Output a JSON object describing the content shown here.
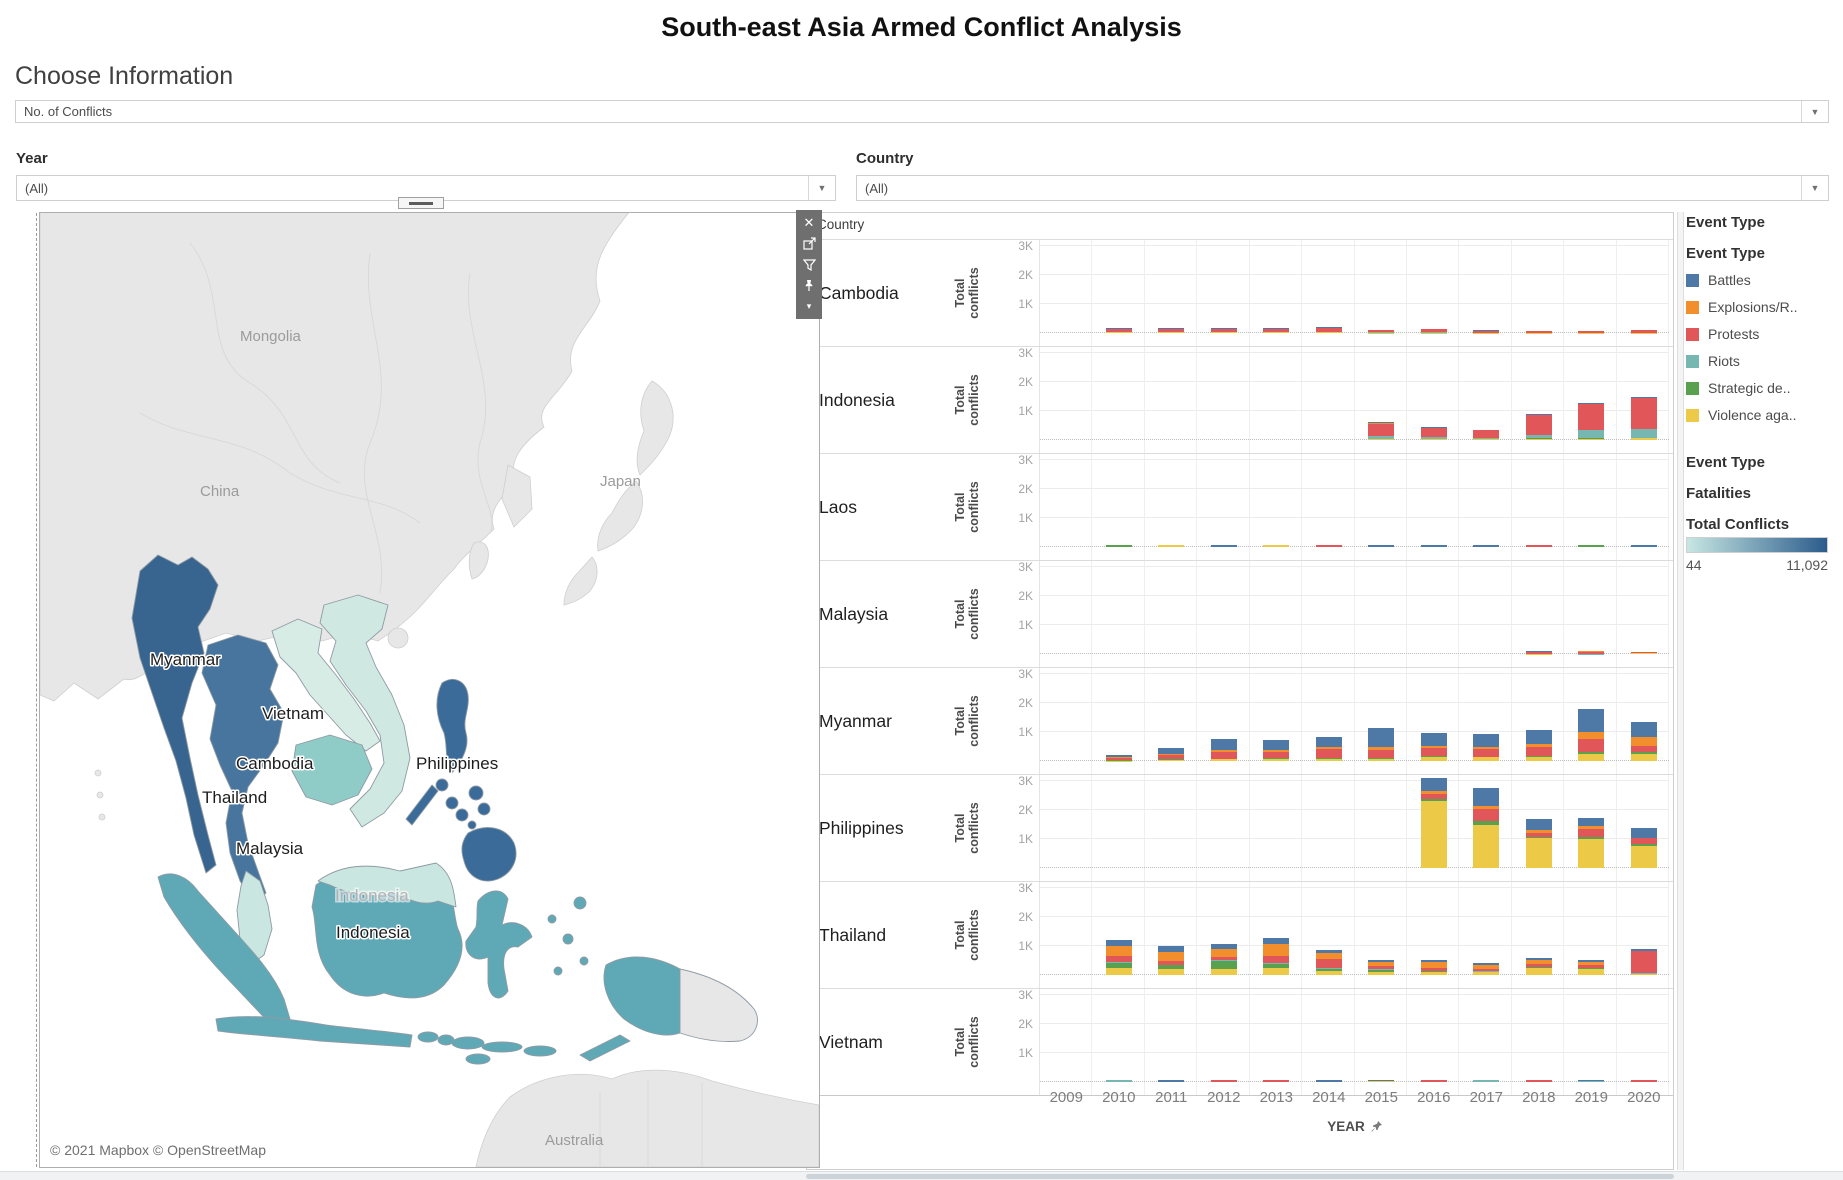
{
  "title": "South-east Asia Armed Conflict Analysis",
  "controls": {
    "choose_information_label": "Choose Information",
    "choose_information_value": "No. of Conflicts",
    "year_label": "Year",
    "year_value": "(All)",
    "country_label": "Country",
    "country_value": "(All)"
  },
  "map": {
    "attribution": "© 2021 Mapbox © OpenStreetMap",
    "basemap_labels": {
      "mongolia": "Mongolia",
      "china": "China",
      "japan": "Japan",
      "australia": "Australia",
      "indonesia_basemap": "Indonesia"
    },
    "mark_labels": {
      "myanmar": "Myanmar",
      "vietnam": "Vietnam",
      "cambodia": "Cambodia",
      "thailand": "Thailand",
      "malaysia": "Malaysia",
      "philippines": "Philippines",
      "indonesia": "Indonesia"
    },
    "country_colors": {
      "land": "#e7e7e7",
      "myanmar": "#386590",
      "thailand": "#47759e",
      "laos": "#d7ece5",
      "vietnam": "#cfe9e2",
      "cambodia": "#8fcbc7",
      "malaysia": "#c9e7e0",
      "indonesia": "#5fa9b7",
      "philippines": "#3a6b99"
    }
  },
  "legend": {
    "section1_title": "Event Type",
    "section2_title": "Event Type",
    "section3_title": "Event Type",
    "fatalities_title": "Fatalities",
    "total_conflicts_title": "Total Conflicts",
    "gradient_min": "44",
    "gradient_max": "11,092",
    "gradient_colors": [
      "#c7e7e3",
      "#2b5c8c"
    ],
    "event_types": [
      {
        "key": "battles",
        "label": "Battles",
        "color": "#4e79a7"
      },
      {
        "key": "explosions",
        "label": "Explosions/R..",
        "color": "#f28e2b"
      },
      {
        "key": "protests",
        "label": "Protests",
        "color": "#e15759"
      },
      {
        "key": "riots",
        "label": "Riots",
        "color": "#76b7b2"
      },
      {
        "key": "strategic",
        "label": "Strategic de..",
        "color": "#59a14f"
      },
      {
        "key": "violence",
        "label": "Violence aga..",
        "color": "#edc948"
      }
    ]
  },
  "chart_data": {
    "type": "bar",
    "stacked": true,
    "row_header": "Country",
    "y_axis_label": "Total conflicts",
    "y_ticks": [
      "3K",
      "2K",
      "1K"
    ],
    "ylim": [
      0,
      3000
    ],
    "x_label": "YEAR",
    "years": [
      "2009",
      "2010",
      "2011",
      "2012",
      "2013",
      "2014",
      "2015",
      "2016",
      "2017",
      "2018",
      "2019",
      "2020"
    ],
    "stack_order": [
      "violence",
      "strategic",
      "riots",
      "protests",
      "explosions",
      "battles"
    ],
    "countries": [
      {
        "name": "Cambodia",
        "values": {
          "2010": {
            "violence": 25,
            "strategic": 8,
            "riots": 6,
            "protests": 110,
            "explosions": 6,
            "battles": 30
          },
          "2011": {
            "violence": 22,
            "strategic": 6,
            "riots": 6,
            "protests": 105,
            "explosions": 5,
            "battles": 28
          },
          "2012": {
            "violence": 20,
            "strategic": 5,
            "riots": 6,
            "protests": 100,
            "explosions": 4,
            "battles": 25
          },
          "2013": {
            "violence": 22,
            "strategic": 5,
            "riots": 8,
            "protests": 110,
            "explosions": 4,
            "battles": 25
          },
          "2014": {
            "violence": 25,
            "strategic": 6,
            "riots": 10,
            "protests": 125,
            "explosions": 4,
            "battles": 25
          },
          "2015": {
            "violence": 10,
            "strategic": 4,
            "riots": 5,
            "protests": 80,
            "explosions": 2,
            "battles": 10
          },
          "2016": {
            "violence": 12,
            "strategic": 5,
            "riots": 6,
            "protests": 105,
            "explosions": 3,
            "battles": 15
          },
          "2017": {
            "violence": 8,
            "strategic": 3,
            "riots": 4,
            "protests": 65,
            "explosions": 2,
            "battles": 8
          },
          "2018": {
            "violence": 5,
            "strategic": 2,
            "riots": 3,
            "protests": 45,
            "explosions": 1,
            "battles": 5
          },
          "2019": {
            "violence": 5,
            "strategic": 2,
            "riots": 3,
            "protests": 60,
            "explosions": 1,
            "battles": 5
          },
          "2020": {
            "violence": 6,
            "strategic": 2,
            "riots": 4,
            "protests": 85,
            "explosions": 1,
            "battles": 6
          }
        }
      },
      {
        "name": "Indonesia",
        "values": {
          "2015": {
            "violence": 30,
            "strategic": 10,
            "riots": 90,
            "protests": 440,
            "explosions": 15,
            "battles": 30
          },
          "2016": {
            "violence": 25,
            "strategic": 8,
            "riots": 60,
            "protests": 310,
            "explosions": 10,
            "battles": 20
          },
          "2017": {
            "violence": 20,
            "strategic": 8,
            "riots": 45,
            "protests": 265,
            "explosions": 8,
            "battles": 15
          },
          "2018": {
            "violence": 40,
            "strategic": 15,
            "riots": 110,
            "protests": 690,
            "explosions": 15,
            "battles": 25
          },
          "2019": {
            "violence": 50,
            "strategic": 35,
            "riots": 260,
            "protests": 890,
            "explosions": 20,
            "battles": 35
          },
          "2020": {
            "violence": 55,
            "strategic": 30,
            "riots": 290,
            "protests": 1060,
            "explosions": 25,
            "battles": 40
          }
        }
      },
      {
        "name": "Laos",
        "values": {
          "2010": {
            "strategic": 4
          },
          "2011": {
            "violence": 4
          },
          "2012": {
            "battles": 4
          },
          "2013": {
            "violence": 4
          },
          "2014": {
            "protests": 4
          },
          "2015": {
            "battles": 4
          },
          "2016": {
            "battles": 4
          },
          "2017": {
            "battles": 4
          },
          "2018": {
            "protests": 4
          },
          "2019": {
            "strategic": 4
          },
          "2020": {
            "battles": 4
          }
        }
      },
      {
        "name": "Malaysia",
        "values": {
          "2018": {
            "violence": 8,
            "riots": 10,
            "protests": 55,
            "battles": 30
          },
          "2019": {
            "riots": 10,
            "protests": 75,
            "explosions": 5,
            "battles": 30
          },
          "2020": {
            "violence": 20,
            "riots": 8,
            "protests": 25,
            "explosions": 12
          }
        }
      },
      {
        "name": "Myanmar",
        "values": {
          "2010": {
            "violence": 15,
            "strategic": 4,
            "protests": 95,
            "explosions": 20,
            "battles": 80
          },
          "2011": {
            "violence": 45,
            "strategic": 10,
            "protests": 140,
            "explosions": 55,
            "battles": 200
          },
          "2012": {
            "violence": 65,
            "strategic": 18,
            "protests": 230,
            "explosions": 65,
            "battles": 370
          },
          "2013": {
            "violence": 65,
            "strategic": 25,
            "protests": 220,
            "explosions": 75,
            "battles": 340
          },
          "2014": {
            "violence": 60,
            "strategic": 28,
            "protests": 320,
            "explosions": 65,
            "battles": 370
          },
          "2015": {
            "violence": 70,
            "strategic": 20,
            "protests": 290,
            "explosions": 115,
            "battles": 630
          },
          "2016": {
            "violence": 145,
            "strategic": 20,
            "protests": 270,
            "explosions": 95,
            "battles": 440
          },
          "2017": {
            "violence": 125,
            "strategic": 18,
            "protests": 270,
            "explosions": 85,
            "battles": 450
          },
          "2018": {
            "violence": 145,
            "strategic": 35,
            "protests": 290,
            "explosions": 115,
            "battles": 480
          },
          "2019": {
            "violence": 240,
            "strategic": 55,
            "protests": 470,
            "explosions": 240,
            "battles": 790
          },
          "2020": {
            "violence": 240,
            "strategic": 55,
            "protests": 230,
            "explosions": 290,
            "battles": 540
          }
        }
      },
      {
        "name": "Philippines",
        "values": {
          "2016": {
            "violence": 2300,
            "strategic": 70,
            "protests": 170,
            "explosions": 110,
            "battles": 450
          },
          "2017": {
            "violence": 1500,
            "strategic": 110,
            "protests": 430,
            "explosions": 100,
            "battles": 610
          },
          "2018": {
            "violence": 1020,
            "strategic": 40,
            "protests": 140,
            "explosions": 110,
            "battles": 390
          },
          "2019": {
            "violence": 1010,
            "strategic": 50,
            "protests": 300,
            "explosions": 80,
            "battles": 290
          },
          "2020": {
            "violence": 760,
            "strategic": 60,
            "protests": 200,
            "explosions": 25,
            "battles": 330
          }
        }
      },
      {
        "name": "Thailand",
        "values": {
          "2010": {
            "violence": 240,
            "strategic": 175,
            "riots": 30,
            "protests": 200,
            "explosions": 360,
            "battles": 190
          },
          "2011": {
            "violence": 210,
            "strategic": 120,
            "riots": 20,
            "protests": 130,
            "explosions": 330,
            "battles": 185
          },
          "2012": {
            "violence": 215,
            "strategic": 275,
            "riots": 20,
            "protests": 120,
            "explosions": 285,
            "battles": 140
          },
          "2013": {
            "violence": 230,
            "strategic": 150,
            "riots": 25,
            "protests": 265,
            "explosions": 395,
            "battles": 195
          },
          "2014": {
            "violence": 150,
            "strategic": 70,
            "riots": 25,
            "protests": 310,
            "explosions": 215,
            "battles": 90
          },
          "2015": {
            "violence": 100,
            "strategic": 85,
            "riots": 10,
            "protests": 110,
            "explosions": 160,
            "battles": 50
          },
          "2016": {
            "violence": 100,
            "strategic": 30,
            "riots": 10,
            "protests": 120,
            "explosions": 195,
            "battles": 70
          },
          "2017": {
            "violence": 90,
            "strategic": 28,
            "riots": 8,
            "protests": 70,
            "explosions": 165,
            "battles": 40
          },
          "2018": {
            "violence": 235,
            "strategic": 38,
            "riots": 8,
            "protests": 100,
            "explosions": 140,
            "battles": 55
          },
          "2019": {
            "violence": 215,
            "strategic": 35,
            "riots": 8,
            "protests": 80,
            "explosions": 120,
            "battles": 50
          },
          "2020": {
            "violence": 40,
            "strategic": 10,
            "riots": 8,
            "protests": 760,
            "explosions": 25,
            "battles": 40
          }
        }
      },
      {
        "name": "Vietnam",
        "values": {
          "2010": {
            "riots": 22,
            "battles": 12
          },
          "2011": {
            "battles": 30
          },
          "2012": {
            "protests": 30
          },
          "2013": {
            "protests": 35
          },
          "2014": {
            "battles": 30
          },
          "2015": {
            "violence": 22,
            "battles": 16
          },
          "2016": {
            "protests": 55
          },
          "2017": {
            "riots": 30
          },
          "2018": {
            "protests": 30
          },
          "2019": {
            "riots": 18,
            "battles": 14
          },
          "2020": {
            "protests": 25
          }
        }
      }
    ]
  }
}
